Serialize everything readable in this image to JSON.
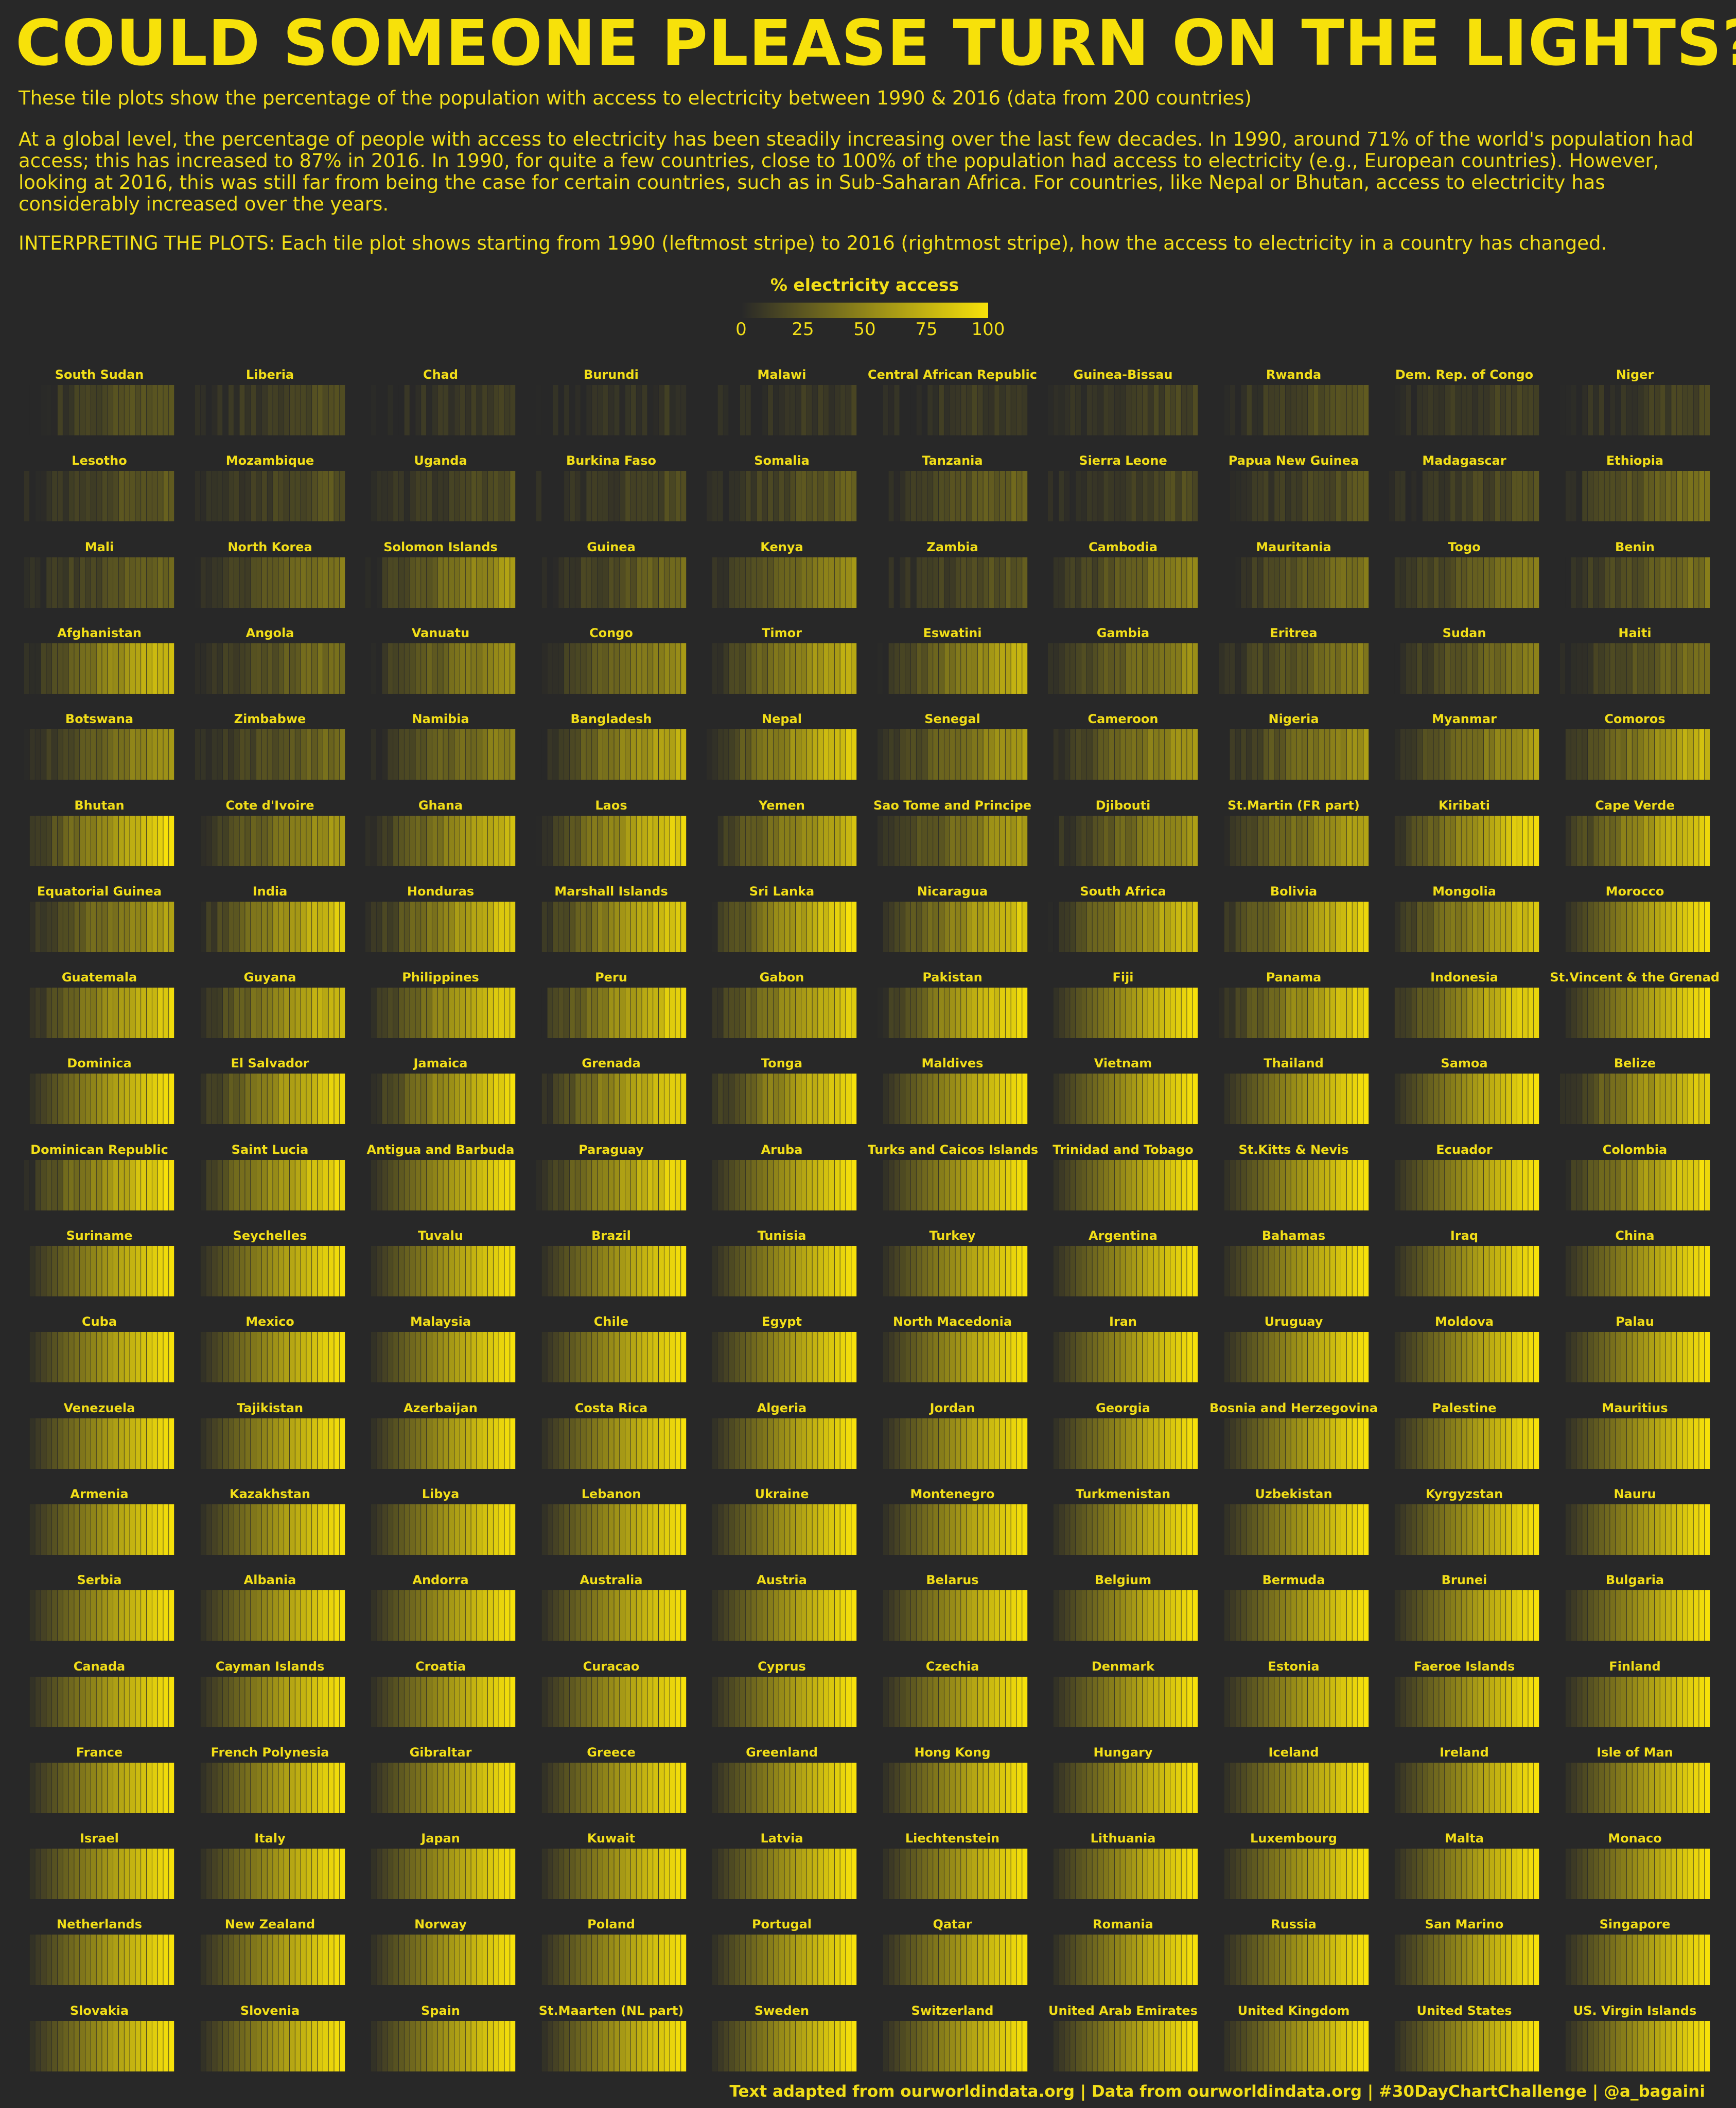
{
  "title": "COULD SOMEONE PLEASE TURN ON THE LIGHTS?",
  "paragraphs": {
    "p1": "These tile plots show the percentage of the population with access to electricity between 1990 & 2016 (data from 200 countries)",
    "p2": "At a global level, the percentage of people with access to electricity has been steadily increasing over the last few decades. In 1990, around 71% of the world's population had access; this has increased to 87% in 2016. In 1990, for quite a few countries, close to 100% of the population had access to electricity (e.g., European countries). However, looking at 2016, this was still far from being the case for certain countries, such as in Sub-Saharan Africa. For countries, like Nepal or Bhutan, access to electricity has considerably increased over the years.",
    "p3": "INTERPRETING THE PLOTS: Each tile plot shows starting from 1990 (leftmost stripe) to 2016 (rightmost stripe), how the access to electricity in a country has changed."
  },
  "legend": {
    "title": "% electricity access",
    "ticks": [
      "0",
      "25",
      "50",
      "75",
      "100"
    ],
    "colors": {
      "low": "#282828",
      "high": "#f7e10a"
    }
  },
  "caption": "Text adapted from ourworldindata.org | Data from ourworldindata.org | #30DayChartChallenge | @a_bagaini",
  "colors": {
    "background": "#282828",
    "accent": "#f7e10a"
  },
  "chart_data": {
    "type": "heatmap",
    "x": [
      1990,
      2016
    ],
    "value_range": [
      0,
      100
    ],
    "countries": [
      {
        "name": "South Sudan",
        "start": 0,
        "end": 27
      },
      {
        "name": "Liberia",
        "start": 0,
        "end": 22
      },
      {
        "name": "Chad",
        "start": 0,
        "end": 11
      },
      {
        "name": "Burundi",
        "start": 0,
        "end": 8
      },
      {
        "name": "Malawi",
        "start": 0,
        "end": 11
      },
      {
        "name": "Central African Republic",
        "start": 0,
        "end": 14
      },
      {
        "name": "Guinea-Bissau",
        "start": 0,
        "end": 17
      },
      {
        "name": "Rwanda",
        "start": 0,
        "end": 29
      },
      {
        "name": "Dem. Rep. of Congo",
        "start": 0,
        "end": 17
      },
      {
        "name": "Niger",
        "start": 0,
        "end": 17
      },
      {
        "name": "Lesotho",
        "start": 0,
        "end": 30
      },
      {
        "name": "Mozambique",
        "start": 0,
        "end": 24
      },
      {
        "name": "Uganda",
        "start": 0,
        "end": 22
      },
      {
        "name": "Burkina Faso",
        "start": 0,
        "end": 19
      },
      {
        "name": "Somalia",
        "start": 0,
        "end": 30
      },
      {
        "name": "Tanzania",
        "start": 0,
        "end": 33
      },
      {
        "name": "Sierra Leone",
        "start": 0,
        "end": 20
      },
      {
        "name": "Papua New Guinea",
        "start": 0,
        "end": 23
      },
      {
        "name": "Madagascar",
        "start": 0,
        "end": 23
      },
      {
        "name": "Ethiopia",
        "start": 0,
        "end": 43
      },
      {
        "name": "Mali",
        "start": 0,
        "end": 35
      },
      {
        "name": "North Korea",
        "start": 0,
        "end": 44
      },
      {
        "name": "Solomon Islands",
        "start": 0,
        "end": 63
      },
      {
        "name": "Guinea",
        "start": 0,
        "end": 35
      },
      {
        "name": "Kenya",
        "start": 0,
        "end": 56
      },
      {
        "name": "Zambia",
        "start": 0,
        "end": 27
      },
      {
        "name": "Cambodia",
        "start": 0,
        "end": 50
      },
      {
        "name": "Mauritania",
        "start": 0,
        "end": 42
      },
      {
        "name": "Togo",
        "start": 0,
        "end": 47
      },
      {
        "name": "Benin",
        "start": 0,
        "end": 41
      },
      {
        "name": "Afghanistan",
        "start": 0,
        "end": 84
      },
      {
        "name": "Angola",
        "start": 0,
        "end": 41
      },
      {
        "name": "Vanuatu",
        "start": 0,
        "end": 58
      },
      {
        "name": "Congo",
        "start": 0,
        "end": 57
      },
      {
        "name": "Timor",
        "start": 0,
        "end": 75
      },
      {
        "name": "Eswatini",
        "start": 0,
        "end": 74
      },
      {
        "name": "Gambia",
        "start": 0,
        "end": 56
      },
      {
        "name": "Eritrea",
        "start": 0,
        "end": 46
      },
      {
        "name": "Sudan",
        "start": 0,
        "end": 45
      },
      {
        "name": "Haiti",
        "start": 0,
        "end": 39
      },
      {
        "name": "Botswana",
        "start": 0,
        "end": 60
      },
      {
        "name": "Zimbabwe",
        "start": 0,
        "end": 38
      },
      {
        "name": "Namibia",
        "start": 0,
        "end": 51
      },
      {
        "name": "Bangladesh",
        "start": 0,
        "end": 76
      },
      {
        "name": "Nepal",
        "start": 0,
        "end": 91
      },
      {
        "name": "Senegal",
        "start": 0,
        "end": 64
      },
      {
        "name": "Cameroon",
        "start": 0,
        "end": 61
      },
      {
        "name": "Nigeria",
        "start": 0,
        "end": 59
      },
      {
        "name": "Myanmar",
        "start": 0,
        "end": 64
      },
      {
        "name": "Comoros",
        "start": 0,
        "end": 80
      },
      {
        "name": "Bhutan",
        "start": 0,
        "end": 98
      },
      {
        "name": "Cote d'Ivoire",
        "start": 0,
        "end": 64
      },
      {
        "name": "Ghana",
        "start": 0,
        "end": 79
      },
      {
        "name": "Laos",
        "start": 0,
        "end": 94
      },
      {
        "name": "Yemen",
        "start": 0,
        "end": 79
      },
      {
        "name": "Sao Tome and Principe",
        "start": 0,
        "end": 65
      },
      {
        "name": "Djibouti",
        "start": 0,
        "end": 60
      },
      {
        "name": "St.Martin (FR part)",
        "start": 0,
        "end": 70
      },
      {
        "name": "Kiribati",
        "start": 0,
        "end": 98
      },
      {
        "name": "Cape Verde",
        "start": 0,
        "end": 93
      },
      {
        "name": "Equatorial Guinea",
        "start": 0,
        "end": 67
      },
      {
        "name": "India",
        "start": 0,
        "end": 88
      },
      {
        "name": "Honduras",
        "start": 0,
        "end": 88
      },
      {
        "name": "Marshall Islands",
        "start": 0,
        "end": 90
      },
      {
        "name": "Sri Lanka",
        "start": 0,
        "end": 97
      },
      {
        "name": "Nicaragua",
        "start": 0,
        "end": 88
      },
      {
        "name": "South Africa",
        "start": 0,
        "end": 84
      },
      {
        "name": "Bolivia",
        "start": 0,
        "end": 93
      },
      {
        "name": "Mongolia",
        "start": 0,
        "end": 86
      },
      {
        "name": "Morocco",
        "start": 0,
        "end": 100
      },
      {
        "name": "Guatemala",
        "start": 0,
        "end": 92
      },
      {
        "name": "Guyana",
        "start": 0,
        "end": 84
      },
      {
        "name": "Philippines",
        "start": 0,
        "end": 91
      },
      {
        "name": "Peru",
        "start": 0,
        "end": 95
      },
      {
        "name": "Gabon",
        "start": 0,
        "end": 91
      },
      {
        "name": "Pakistan",
        "start": 0,
        "end": 99
      },
      {
        "name": "Fiji",
        "start": 0,
        "end": 100
      },
      {
        "name": "Panama",
        "start": 0,
        "end": 93
      },
      {
        "name": "Indonesia",
        "start": 0,
        "end": 98
      },
      {
        "name": "St.Vincent & the Grenadines",
        "start": 0,
        "end": 100
      },
      {
        "name": "Dominica",
        "start": 0,
        "end": 100
      },
      {
        "name": "El Salvador",
        "start": 0,
        "end": 97
      },
      {
        "name": "Jamaica",
        "start": 0,
        "end": 98
      },
      {
        "name": "Grenada",
        "start": 0,
        "end": 94
      },
      {
        "name": "Tonga",
        "start": 0,
        "end": 98
      },
      {
        "name": "Maldives",
        "start": 0,
        "end": 100
      },
      {
        "name": "Vietnam",
        "start": 0,
        "end": 100
      },
      {
        "name": "Thailand",
        "start": 0,
        "end": 100
      },
      {
        "name": "Samoa",
        "start": 0,
        "end": 100
      },
      {
        "name": "Belize",
        "start": 0,
        "end": 92
      },
      {
        "name": "Dominican Republic",
        "start": 0,
        "end": 99
      },
      {
        "name": "Saint Lucia",
        "start": 0,
        "end": 98
      },
      {
        "name": "Antigua and Barbuda",
        "start": 0,
        "end": 100
      },
      {
        "name": "Paraguay",
        "start": 0,
        "end": 99
      },
      {
        "name": "Aruba",
        "start": 0,
        "end": 100
      },
      {
        "name": "Turks and Caicos Islands",
        "start": 0,
        "end": 100
      },
      {
        "name": "Trinidad and Tobago",
        "start": 0,
        "end": 100
      },
      {
        "name": "St.Kitts & Nevis",
        "start": 0,
        "end": 100
      },
      {
        "name": "Ecuador",
        "start": 0,
        "end": 100
      },
      {
        "name": "Colombia",
        "start": 0,
        "end": 98
      },
      {
        "name": "Suriname",
        "start": 0,
        "end": 100
      },
      {
        "name": "Seychelles",
        "start": 0,
        "end": 100
      },
      {
        "name": "Tuvalu",
        "start": 0,
        "end": 100
      },
      {
        "name": "Brazil",
        "start": 0,
        "end": 100
      },
      {
        "name": "Tunisia",
        "start": 0,
        "end": 100
      },
      {
        "name": "Turkey",
        "start": 0,
        "end": 100
      },
      {
        "name": "Argentina",
        "start": 0,
        "end": 100
      },
      {
        "name": "Bahamas",
        "start": 0,
        "end": 100
      },
      {
        "name": "Iraq",
        "start": 0,
        "end": 100
      },
      {
        "name": "China",
        "start": 0,
        "end": 100
      },
      {
        "name": "Cuba",
        "start": 0,
        "end": 100
      },
      {
        "name": "Mexico",
        "start": 0,
        "end": 100
      },
      {
        "name": "Malaysia",
        "start": 0,
        "end": 100
      },
      {
        "name": "Chile",
        "start": 0,
        "end": 100
      },
      {
        "name": "Egypt",
        "start": 0,
        "end": 100
      },
      {
        "name": "North Macedonia",
        "start": 0,
        "end": 100
      },
      {
        "name": "Iran",
        "start": 0,
        "end": 100
      },
      {
        "name": "Uruguay",
        "start": 0,
        "end": 100
      },
      {
        "name": "Moldova",
        "start": 0,
        "end": 100
      },
      {
        "name": "Palau",
        "start": 0,
        "end": 100
      },
      {
        "name": "Venezuela",
        "start": 0,
        "end": 100
      },
      {
        "name": "Tajikistan",
        "start": 0,
        "end": 100
      },
      {
        "name": "Azerbaijan",
        "start": 0,
        "end": 100
      },
      {
        "name": "Costa Rica",
        "start": 0,
        "end": 100
      },
      {
        "name": "Algeria",
        "start": 0,
        "end": 100
      },
      {
        "name": "Jordan",
        "start": 0,
        "end": 100
      },
      {
        "name": "Georgia",
        "start": 0,
        "end": 100
      },
      {
        "name": "Bosnia and Herzegovina",
        "start": 0,
        "end": 100
      },
      {
        "name": "Palestine",
        "start": 0,
        "end": 100
      },
      {
        "name": "Mauritius",
        "start": 0,
        "end": 100
      },
      {
        "name": "Armenia",
        "start": 0,
        "end": 100
      },
      {
        "name": "Kazakhstan",
        "start": 0,
        "end": 100
      },
      {
        "name": "Libya",
        "start": 0,
        "end": 100
      },
      {
        "name": "Lebanon",
        "start": 0,
        "end": 100
      },
      {
        "name": "Ukraine",
        "start": 0,
        "end": 100
      },
      {
        "name": "Montenegro",
        "start": 0,
        "end": 100
      },
      {
        "name": "Turkmenistan",
        "start": 0,
        "end": 100
      },
      {
        "name": "Uzbekistan",
        "start": 0,
        "end": 100
      },
      {
        "name": "Kyrgyzstan",
        "start": 0,
        "end": 100
      },
      {
        "name": "Nauru",
        "start": 0,
        "end": 100
      },
      {
        "name": "Serbia",
        "start": 0,
        "end": 100
      },
      {
        "name": "Albania",
        "start": 0,
        "end": 100
      },
      {
        "name": "Andorra",
        "start": 0,
        "end": 100
      },
      {
        "name": "Australia",
        "start": 0,
        "end": 100
      },
      {
        "name": "Austria",
        "start": 0,
        "end": 100
      },
      {
        "name": "Belarus",
        "start": 0,
        "end": 100
      },
      {
        "name": "Belgium",
        "start": 0,
        "end": 100
      },
      {
        "name": "Bermuda",
        "start": 0,
        "end": 100
      },
      {
        "name": "Brunei",
        "start": 0,
        "end": 100
      },
      {
        "name": "Bulgaria",
        "start": 0,
        "end": 100
      },
      {
        "name": "Canada",
        "start": 0,
        "end": 100
      },
      {
        "name": "Cayman Islands",
        "start": 0,
        "end": 100
      },
      {
        "name": "Croatia",
        "start": 0,
        "end": 100
      },
      {
        "name": "Curacao",
        "start": 0,
        "end": 100
      },
      {
        "name": "Cyprus",
        "start": 0,
        "end": 100
      },
      {
        "name": "Czechia",
        "start": 0,
        "end": 100
      },
      {
        "name": "Denmark",
        "start": 0,
        "end": 100
      },
      {
        "name": "Estonia",
        "start": 0,
        "end": 100
      },
      {
        "name": "Faeroe Islands",
        "start": 0,
        "end": 100
      },
      {
        "name": "Finland",
        "start": 0,
        "end": 100
      },
      {
        "name": "France",
        "start": 0,
        "end": 100
      },
      {
        "name": "French Polynesia",
        "start": 0,
        "end": 100
      },
      {
        "name": "Gibraltar",
        "start": 0,
        "end": 100
      },
      {
        "name": "Greece",
        "start": 0,
        "end": 100
      },
      {
        "name": "Greenland",
        "start": 0,
        "end": 100
      },
      {
        "name": "Hong Kong",
        "start": 0,
        "end": 100
      },
      {
        "name": "Hungary",
        "start": 0,
        "end": 100
      },
      {
        "name": "Iceland",
        "start": 0,
        "end": 100
      },
      {
        "name": "Ireland",
        "start": 0,
        "end": 100
      },
      {
        "name": "Isle of Man",
        "start": 0,
        "end": 100
      },
      {
        "name": "Israel",
        "start": 0,
        "end": 100
      },
      {
        "name": "Italy",
        "start": 0,
        "end": 100
      },
      {
        "name": "Japan",
        "start": 0,
        "end": 100
      },
      {
        "name": "Kuwait",
        "start": 0,
        "end": 100
      },
      {
        "name": "Latvia",
        "start": 0,
        "end": 100
      },
      {
        "name": "Liechtenstein",
        "start": 0,
        "end": 100
      },
      {
        "name": "Lithuania",
        "start": 0,
        "end": 100
      },
      {
        "name": "Luxembourg",
        "start": 0,
        "end": 100
      },
      {
        "name": "Malta",
        "start": 0,
        "end": 100
      },
      {
        "name": "Monaco",
        "start": 0,
        "end": 100
      },
      {
        "name": "Netherlands",
        "start": 0,
        "end": 100
      },
      {
        "name": "New Zealand",
        "start": 0,
        "end": 100
      },
      {
        "name": "Norway",
        "start": 0,
        "end": 100
      },
      {
        "name": "Poland",
        "start": 0,
        "end": 100
      },
      {
        "name": "Portugal",
        "start": 0,
        "end": 100
      },
      {
        "name": "Qatar",
        "start": 0,
        "end": 100
      },
      {
        "name": "Romania",
        "start": 0,
        "end": 100
      },
      {
        "name": "Russia",
        "start": 0,
        "end": 100
      },
      {
        "name": "San Marino",
        "start": 0,
        "end": 100
      },
      {
        "name": "Singapore",
        "start": 0,
        "end": 100
      },
      {
        "name": "Slovakia",
        "start": 0,
        "end": 100
      },
      {
        "name": "Slovenia",
        "start": 0,
        "end": 100
      },
      {
        "name": "Spain",
        "start": 0,
        "end": 100
      },
      {
        "name": "St.Maarten (NL part)",
        "start": 0,
        "end": 100
      },
      {
        "name": "Sweden",
        "start": 0,
        "end": 100
      },
      {
        "name": "Switzerland",
        "start": 0,
        "end": 100
      },
      {
        "name": "United Arab Emirates",
        "start": 0,
        "end": 100
      },
      {
        "name": "United Kingdom",
        "start": 0,
        "end": 100
      },
      {
        "name": "United States",
        "start": 0,
        "end": 100
      },
      {
        "name": "US. Virgin Islands",
        "start": 0,
        "end": 100
      }
    ]
  }
}
